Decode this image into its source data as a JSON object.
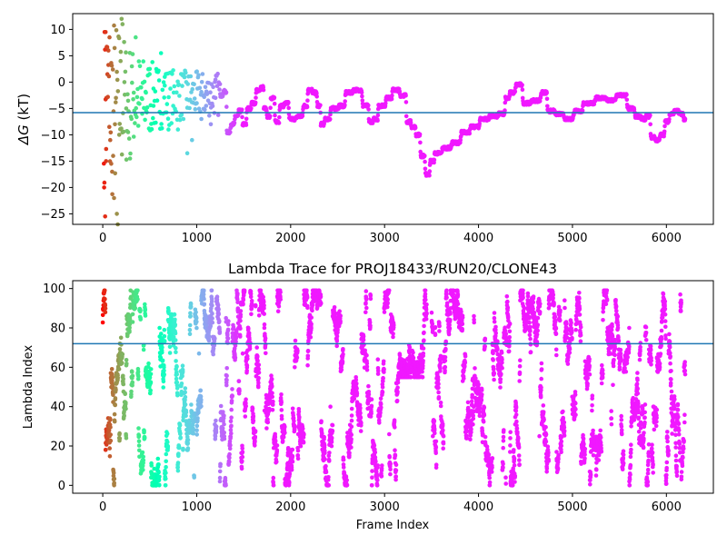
{
  "chart_data": [
    {
      "type": "scatter",
      "title": "",
      "xlabel": "",
      "ylabel_symbol": "ΔG",
      "ylabel_unit": " (kT)",
      "xlim": [
        -320,
        6500
      ],
      "ylim": [
        -27,
        13
      ],
      "xticks": [
        0,
        1000,
        2000,
        3000,
        4000,
        5000,
        6000
      ],
      "yticks": [
        10,
        5,
        0,
        -5,
        -10,
        -15,
        -20,
        -25
      ],
      "hline": -5.8,
      "hline_color": "#1f77b4",
      "colormap": "rainbow-reversed-by-frame",
      "frame_max": 6200,
      "trace": [
        [
          1250,
          -2.5
        ],
        [
          1300,
          -1.8
        ],
        [
          1330,
          -9.5
        ],
        [
          1380,
          -8.0
        ],
        [
          1420,
          -6.5
        ],
        [
          1460,
          -5.5
        ],
        [
          1500,
          -8.0
        ],
        [
          1550,
          -5.0
        ],
        [
          1600,
          -4.0
        ],
        [
          1650,
          -1.5
        ],
        [
          1700,
          -1.0
        ],
        [
          1720,
          -5.0
        ],
        [
          1760,
          -6.5
        ],
        [
          1800,
          -3.0
        ],
        [
          1850,
          -7.5
        ],
        [
          1900,
          -4.5
        ],
        [
          1950,
          -4.0
        ],
        [
          2000,
          -7.0
        ],
        [
          2100,
          -6.5
        ],
        [
          2150,
          -4.5
        ],
        [
          2200,
          -1.5
        ],
        [
          2250,
          -2.0
        ],
        [
          2300,
          -4.5
        ],
        [
          2330,
          -8.0
        ],
        [
          2380,
          -7.0
        ],
        [
          2450,
          -5.0
        ],
        [
          2550,
          -4.5
        ],
        [
          2600,
          -2.0
        ],
        [
          2700,
          -1.5
        ],
        [
          2800,
          -4.5
        ],
        [
          2850,
          -7.5
        ],
        [
          2900,
          -7.0
        ],
        [
          2950,
          -4.5
        ],
        [
          3050,
          -3.0
        ],
        [
          3100,
          -1.5
        ],
        [
          3200,
          -2.5
        ],
        [
          3250,
          -7.5
        ],
        [
          3300,
          -8.5
        ],
        [
          3350,
          -10.0
        ],
        [
          3400,
          -14.0
        ],
        [
          3450,
          -17.5
        ],
        [
          3500,
          -15.0
        ],
        [
          3550,
          -13.5
        ],
        [
          3650,
          -12.5
        ],
        [
          3750,
          -11.5
        ],
        [
          3850,
          -9.5
        ],
        [
          3950,
          -8.5
        ],
        [
          4050,
          -7.0
        ],
        [
          4150,
          -6.5
        ],
        [
          4250,
          -6.0
        ],
        [
          4300,
          -3.0
        ],
        [
          4350,
          -2.0
        ],
        [
          4420,
          -0.5
        ],
        [
          4500,
          -4.0
        ],
        [
          4600,
          -3.5
        ],
        [
          4700,
          -2.0
        ],
        [
          4750,
          -5.5
        ],
        [
          4850,
          -6.0
        ],
        [
          4950,
          -7.0
        ],
        [
          5050,
          -5.5
        ],
        [
          5150,
          -4.0
        ],
        [
          5300,
          -3.0
        ],
        [
          5400,
          -3.5
        ],
        [
          5500,
          -2.5
        ],
        [
          5550,
          -2.5
        ],
        [
          5600,
          -5.0
        ],
        [
          5700,
          -6.5
        ],
        [
          5750,
          -7.0
        ],
        [
          5800,
          -6.5
        ],
        [
          5850,
          -10.5
        ],
        [
          5900,
          -11.0
        ],
        [
          5950,
          -10.0
        ],
        [
          6000,
          -7.5
        ],
        [
          6050,
          -6.0
        ],
        [
          6100,
          -5.5
        ],
        [
          6150,
          -6.0
        ],
        [
          6200,
          -7.0
        ]
      ],
      "spread_points": [
        [
          20,
          9.5
        ],
        [
          30,
          9.5
        ],
        [
          15,
          -20
        ],
        [
          25,
          -25.5
        ],
        [
          35,
          -15
        ],
        [
          40,
          -3
        ],
        [
          50,
          1.5
        ],
        [
          60,
          6
        ],
        [
          70,
          -8.5
        ],
        [
          80,
          -11
        ],
        [
          90,
          -15.5
        ],
        [
          100,
          -17
        ],
        [
          110,
          -14
        ],
        [
          120,
          -22
        ],
        [
          130,
          -8
        ],
        [
          140,
          -3
        ],
        [
          150,
          -25
        ],
        [
          160,
          -27
        ],
        [
          175,
          -10
        ],
        [
          190,
          4
        ],
        [
          200,
          12
        ],
        [
          210,
          11
        ],
        [
          230,
          0
        ],
        [
          250,
          -5
        ],
        [
          270,
          -9.5
        ],
        [
          290,
          -14.5
        ],
        [
          310,
          3
        ],
        [
          330,
          -2
        ],
        [
          350,
          8.5
        ],
        [
          380,
          -4
        ],
        [
          420,
          -6
        ],
        [
          460,
          -2
        ],
        [
          500,
          2.5
        ],
        [
          540,
          -4.5
        ],
        [
          580,
          -3.5
        ],
        [
          620,
          5.5
        ],
        [
          660,
          1
        ],
        [
          700,
          -9
        ],
        [
          750,
          -4.5
        ],
        [
          800,
          -9
        ],
        [
          850,
          1.5
        ],
        [
          900,
          -13.5
        ],
        [
          950,
          -11
        ],
        [
          1000,
          -4
        ],
        [
          1050,
          -7
        ],
        [
          1100,
          -4.5
        ],
        [
          1150,
          -8
        ],
        [
          1200,
          -3
        ]
      ]
    },
    {
      "type": "scatter",
      "title": "Lambda Trace for PROJ18433/RUN20/CLONE43",
      "xlabel": "Frame Index",
      "ylabel": "Lambda Index",
      "xlim": [
        -320,
        6500
      ],
      "ylim": [
        -4,
        104
      ],
      "xticks": [
        0,
        1000,
        2000,
        3000,
        4000,
        5000,
        6000
      ],
      "yticks": [
        0,
        20,
        40,
        60,
        80,
        100
      ],
      "hline": 72,
      "hline_color": "#1f77b4",
      "colormap": "rainbow-reversed-by-frame",
      "frame_max": 6200,
      "lambda_max": 99,
      "gap_frames": [
        3450,
        3500
      ]
    }
  ]
}
